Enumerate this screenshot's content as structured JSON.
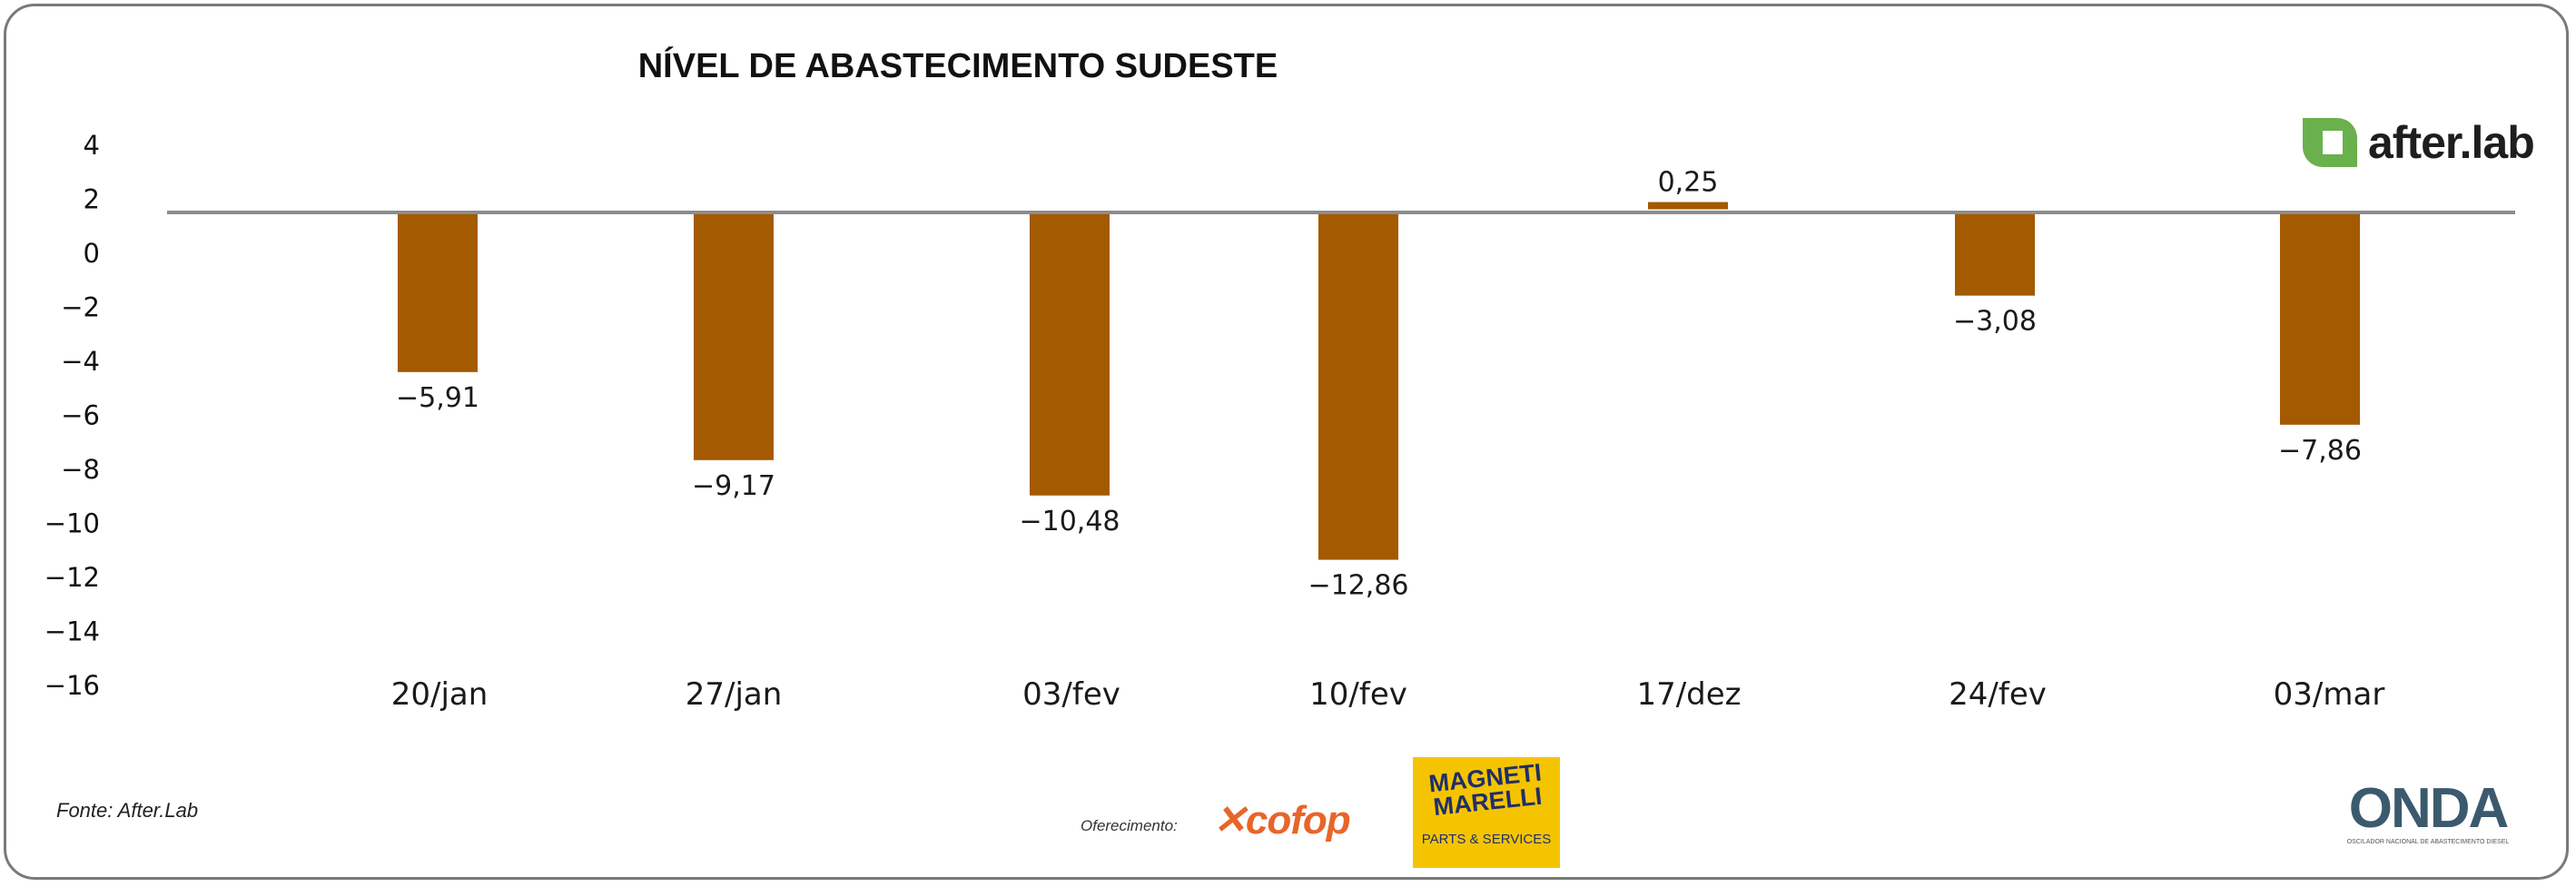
{
  "chart_data": {
    "type": "bar",
    "title": "NÍVEL DE ABASTECIMENTO SUDESTE",
    "xlabel": "",
    "ylabel": "",
    "categories": [
      "20/jan",
      "27/jan",
      "03/fev",
      "10/fev",
      "17/dez",
      "24/fev",
      "03/mar"
    ],
    "values": [
      -5.91,
      -9.17,
      -10.48,
      -12.86,
      0.25,
      -3.08,
      -7.86
    ],
    "value_labels": [
      "-5,91",
      "-9,17",
      "-10,48",
      "-12,86",
      "0,25",
      "-3,08",
      "-7,86"
    ],
    "yticks": [
      4,
      2,
      0,
      -2,
      -4,
      -6,
      -8,
      -10,
      -12,
      -14,
      -16
    ],
    "ylim": [
      -16,
      4
    ],
    "grid": false,
    "legend": "none",
    "bar_color": "#a35a00",
    "baseline_color": "#8c8c8c"
  },
  "footer": {
    "source": "Fonte: After.Lab",
    "sponsor_label": "Oferecimento:"
  },
  "logos": {
    "afterlab": "after.lab",
    "cofop": "cofop",
    "magneti_marelli_top": "MAGNETI MARELLI",
    "magneti_marelli_bottom": "PARTS & SERVICES",
    "onda": "ONDA",
    "onda_tagline": "OSCILADOR NACIONAL DE ABASTECIMENTO DIESEL"
  },
  "colors": {
    "afterlab_green": "#6ab04c",
    "cofop_orange": "#e8652a",
    "marelli_yellow": "#f5c400",
    "marelli_blue": "#1f2f6b"
  }
}
